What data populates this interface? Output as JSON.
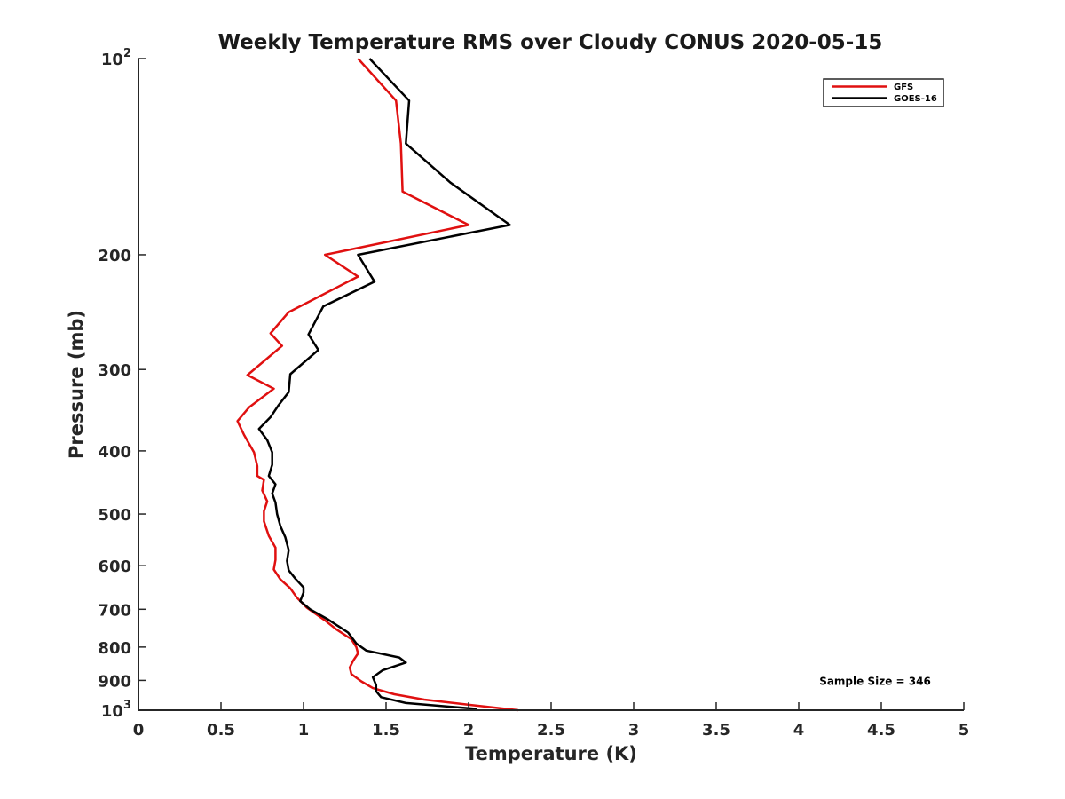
{
  "chart_data": {
    "type": "line",
    "title": "Weekly Temperature RMS over Cloudy CONUS 2020-05-15",
    "xlabel": "Temperature (K)",
    "ylabel": "Pressure (mb)",
    "xlim": [
      0,
      5
    ],
    "ylim": [
      100,
      1000
    ],
    "y_scale": "log",
    "y_reversed": true,
    "x_ticks": [
      "0",
      "0.5",
      "1",
      "1.5",
      "2",
      "2.5",
      "3",
      "3.5",
      "4",
      "4.5",
      "5"
    ],
    "x_tick_values": [
      0,
      0.5,
      1,
      1.5,
      2,
      2.5,
      3,
      3.5,
      4,
      4.5,
      5
    ],
    "y_ticks": [
      {
        "value": 100,
        "base": "10",
        "exp": "2"
      },
      {
        "value": 200,
        "label": "200"
      },
      {
        "value": 300,
        "label": "300"
      },
      {
        "value": 400,
        "label": "400"
      },
      {
        "value": 500,
        "label": "500"
      },
      {
        "value": 600,
        "label": "600"
      },
      {
        "value": 700,
        "label": "700"
      },
      {
        "value": 800,
        "label": "800"
      },
      {
        "value": 900,
        "label": "900"
      },
      {
        "value": 1000,
        "base": "10",
        "exp": "3"
      }
    ],
    "grid": false,
    "legend_position": "top-right",
    "series": [
      {
        "name": "GFS",
        "color": "#e01010",
        "points": [
          [
            1.33,
            100
          ],
          [
            1.56,
            116
          ],
          [
            1.59,
            135
          ],
          [
            1.6,
            160
          ],
          [
            2.0,
            180
          ],
          [
            1.13,
            200
          ],
          [
            1.33,
            216
          ],
          [
            0.91,
            245
          ],
          [
            0.8,
            264
          ],
          [
            0.87,
            276
          ],
          [
            0.66,
            306
          ],
          [
            0.82,
            321
          ],
          [
            0.67,
            343
          ],
          [
            0.6,
            360
          ],
          [
            0.64,
            378
          ],
          [
            0.7,
            402
          ],
          [
            0.72,
            422
          ],
          [
            0.72,
            437
          ],
          [
            0.76,
            443
          ],
          [
            0.75,
            460
          ],
          [
            0.78,
            478
          ],
          [
            0.76,
            495
          ],
          [
            0.76,
            513
          ],
          [
            0.79,
            540
          ],
          [
            0.83,
            563
          ],
          [
            0.83,
            588
          ],
          [
            0.82,
            608
          ],
          [
            0.86,
            630
          ],
          [
            0.92,
            650
          ],
          [
            0.96,
            672
          ],
          [
            1.02,
            696
          ],
          [
            1.13,
            728
          ],
          [
            1.2,
            752
          ],
          [
            1.29,
            778
          ],
          [
            1.32,
            800
          ],
          [
            1.33,
            818
          ],
          [
            1.3,
            840
          ],
          [
            1.28,
            860
          ],
          [
            1.29,
            880
          ],
          [
            1.35,
            903
          ],
          [
            1.42,
            925
          ],
          [
            1.55,
            945
          ],
          [
            1.73,
            963
          ],
          [
            2.02,
            982
          ],
          [
            2.3,
            1000
          ]
        ]
      },
      {
        "name": "GOES-16",
        "color": "#000000",
        "points": [
          [
            1.4,
            100
          ],
          [
            1.64,
            116
          ],
          [
            1.62,
            135
          ],
          [
            1.89,
            155
          ],
          [
            2.25,
            180
          ],
          [
            1.33,
            200
          ],
          [
            1.43,
            220
          ],
          [
            1.12,
            240
          ],
          [
            1.03,
            265
          ],
          [
            1.09,
            280
          ],
          [
            0.92,
            305
          ],
          [
            0.91,
            325
          ],
          [
            0.85,
            340
          ],
          [
            0.8,
            355
          ],
          [
            0.73,
            370
          ],
          [
            0.78,
            385
          ],
          [
            0.81,
            402
          ],
          [
            0.81,
            420
          ],
          [
            0.79,
            437
          ],
          [
            0.83,
            450
          ],
          [
            0.81,
            465
          ],
          [
            0.83,
            480
          ],
          [
            0.84,
            500
          ],
          [
            0.86,
            522
          ],
          [
            0.89,
            543
          ],
          [
            0.91,
            568
          ],
          [
            0.9,
            590
          ],
          [
            0.91,
            610
          ],
          [
            0.95,
            628
          ],
          [
            1.0,
            648
          ],
          [
            1.0,
            660
          ],
          [
            0.98,
            680
          ],
          [
            1.04,
            700
          ],
          [
            1.15,
            726
          ],
          [
            1.27,
            760
          ],
          [
            1.32,
            790
          ],
          [
            1.38,
            810
          ],
          [
            1.58,
            830
          ],
          [
            1.62,
            845
          ],
          [
            1.48,
            868
          ],
          [
            1.42,
            890
          ],
          [
            1.44,
            915
          ],
          [
            1.44,
            935
          ],
          [
            1.47,
            955
          ],
          [
            1.62,
            975
          ],
          [
            2.04,
            995
          ],
          [
            2.05,
            1000
          ]
        ]
      }
    ],
    "annotations": [
      {
        "text": "Sample Size = 346",
        "x": 4.8,
        "y": 900
      }
    ]
  }
}
